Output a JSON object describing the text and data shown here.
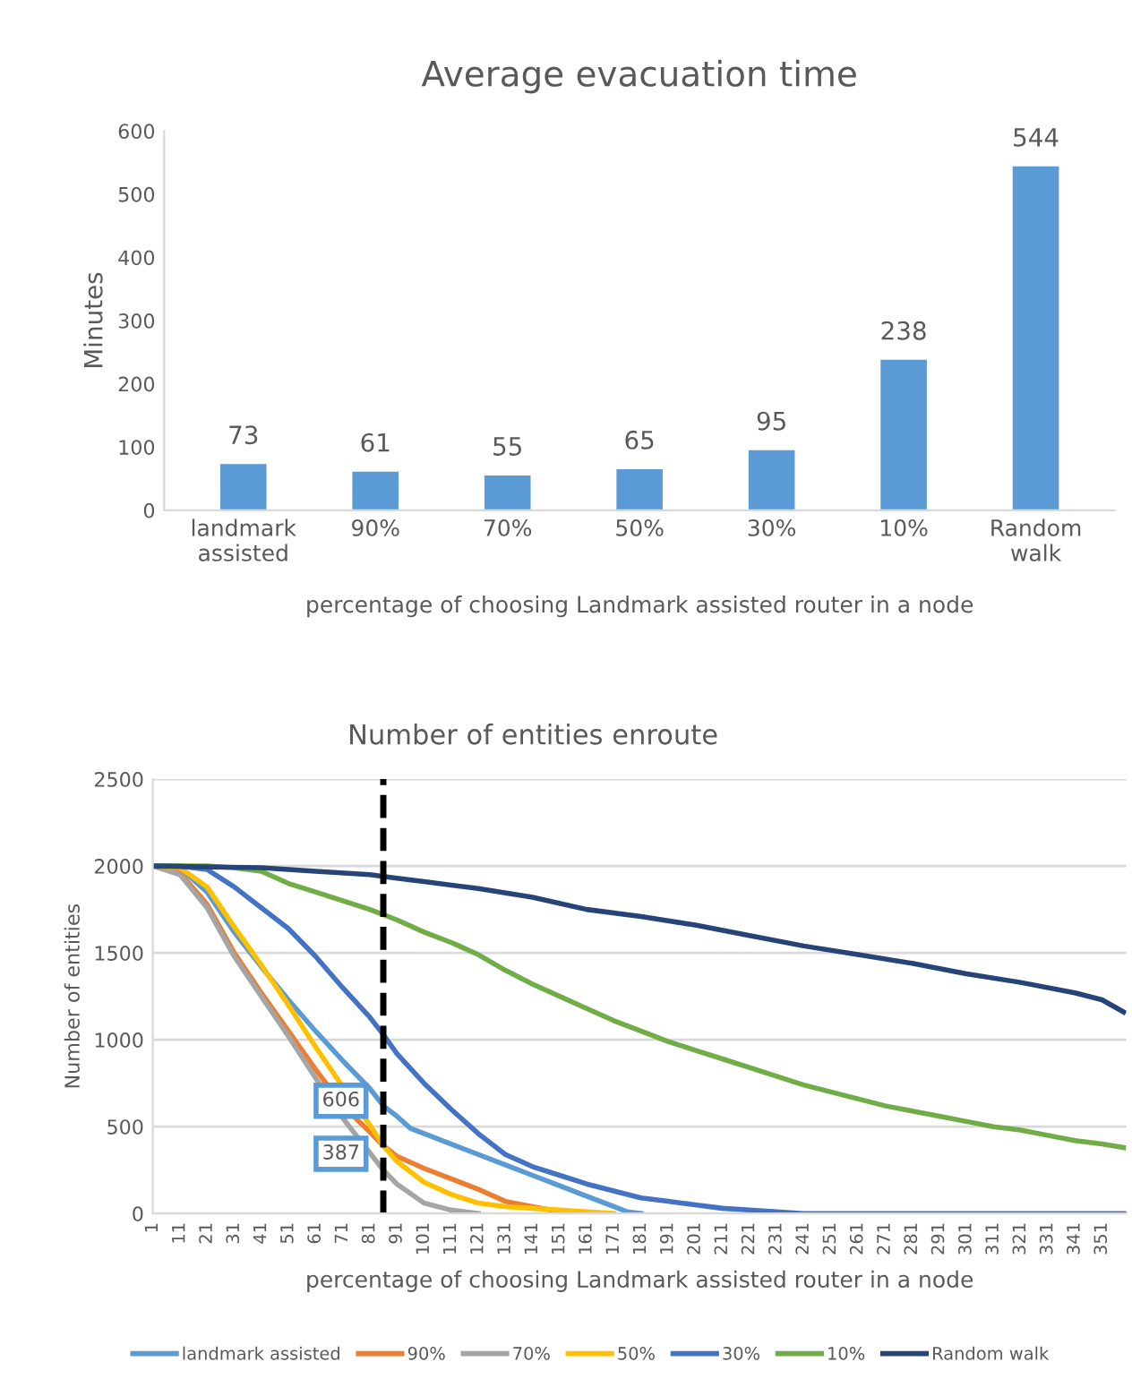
{
  "chart_data": [
    {
      "type": "bar",
      "title": "Average evacuation time",
      "xlabel": "percentage of choosing Landmark assisted router in a node",
      "ylabel": "Minutes",
      "categories": [
        "landmark\nassisted",
        "90%",
        "70%",
        "50%",
        "30%",
        "10%",
        "Random\nwalk"
      ],
      "values": [
        73,
        61,
        55,
        65,
        95,
        238,
        544
      ],
      "color": "#5b9bd5",
      "ylim": [
        0,
        600
      ],
      "yticks": [
        0,
        100,
        200,
        300,
        400,
        500,
        600
      ],
      "data_labels": true,
      "grid": false
    },
    {
      "type": "line",
      "title": "Number of entities enroute",
      "xlabel": "percentage of choosing Landmark assisted router in a node",
      "ylabel": "Number of entities",
      "xlim": [
        1,
        360
      ],
      "xticks": [
        1,
        11,
        21,
        31,
        41,
        51,
        61,
        71,
        81,
        91,
        101,
        111,
        121,
        131,
        141,
        151,
        161,
        171,
        181,
        191,
        201,
        211,
        221,
        231,
        241,
        251,
        261,
        271,
        281,
        291,
        301,
        311,
        321,
        331,
        341,
        351
      ],
      "ylim": [
        0,
        2500
      ],
      "yticks": [
        0,
        500,
        1000,
        1500,
        2000,
        2500
      ],
      "grid": "y",
      "legend": "bottom",
      "marker": "none",
      "line_style": "solid",
      "ref_lines": [
        {
          "axis": "x",
          "value": 86,
          "color": "#000000",
          "line_style": "dashed"
        }
      ],
      "annotations": [
        {
          "text": "606",
          "x": 86,
          "y": 606
        },
        {
          "text": "387",
          "x": 86,
          "y": 387
        }
      ],
      "series": [
        {
          "name": "landmark assisted",
          "color": "#5b9bd5",
          "x": [
            1,
            11,
            21,
            31,
            41,
            51,
            61,
            71,
            81,
            86,
            91,
            96,
            101,
            111,
            121,
            131,
            141,
            151,
            161,
            171,
            176,
            181
          ],
          "values": [
            2000,
            1990,
            1850,
            1620,
            1420,
            1230,
            1050,
            880,
            720,
            620,
            560,
            490,
            460,
            400,
            340,
            280,
            220,
            160,
            100,
            40,
            10,
            0
          ]
        },
        {
          "name": "90%",
          "color": "#ed7d31",
          "x": [
            1,
            11,
            21,
            31,
            41,
            51,
            61,
            71,
            81,
            86,
            91,
            101,
            111,
            121,
            131,
            141,
            151
          ],
          "values": [
            2000,
            1960,
            1780,
            1500,
            1270,
            1050,
            830,
            620,
            470,
            390,
            330,
            260,
            200,
            140,
            70,
            40,
            10
          ]
        },
        {
          "name": "70%",
          "color": "#a5a5a5",
          "x": [
            1,
            11,
            21,
            31,
            41,
            51,
            61,
            71,
            81,
            86,
            91,
            101,
            111,
            121
          ],
          "values": [
            2000,
            1950,
            1760,
            1480,
            1250,
            1020,
            780,
            550,
            350,
            250,
            170,
            60,
            20,
            0
          ]
        },
        {
          "name": "50%",
          "color": "#ffc000",
          "x": [
            1,
            11,
            21,
            31,
            41,
            51,
            61,
            71,
            81,
            86,
            91,
            101,
            111,
            121,
            131,
            141,
            151,
            161,
            171
          ],
          "values": [
            2000,
            1990,
            1880,
            1650,
            1430,
            1200,
            960,
            730,
            510,
            390,
            300,
            180,
            110,
            60,
            40,
            30,
            20,
            10,
            0
          ]
        },
        {
          "name": "30%",
          "color": "#4472c4",
          "x": [
            1,
            11,
            21,
            31,
            41,
            51,
            61,
            71,
            81,
            86,
            91,
            101,
            111,
            121,
            131,
            141,
            151,
            161,
            171,
            181,
            191,
            201,
            211,
            221,
            231,
            241,
            251,
            360
          ],
          "values": [
            2000,
            2000,
            1980,
            1880,
            1760,
            1640,
            1480,
            1300,
            1130,
            1030,
            920,
            750,
            600,
            460,
            340,
            270,
            220,
            170,
            130,
            90,
            70,
            50,
            30,
            20,
            10,
            0,
            0,
            0
          ]
        },
        {
          "name": "10%",
          "color": "#70ad47",
          "x": [
            1,
            21,
            31,
            41,
            51,
            61,
            71,
            81,
            91,
            101,
            111,
            121,
            131,
            141,
            151,
            161,
            171,
            181,
            191,
            201,
            211,
            221,
            231,
            241,
            251,
            261,
            271,
            281,
            291,
            301,
            311,
            321,
            331,
            341,
            351,
            359
          ],
          "values": [
            2000,
            2000,
            1990,
            1970,
            1900,
            1850,
            1800,
            1750,
            1690,
            1620,
            1560,
            1490,
            1400,
            1320,
            1250,
            1180,
            1110,
            1050,
            990,
            940,
            890,
            840,
            790,
            740,
            700,
            660,
            620,
            590,
            560,
            530,
            500,
            480,
            450,
            420,
            400,
            380
          ]
        },
        {
          "name": "Random walk",
          "color": "#264478",
          "x": [
            1,
            41,
            61,
            81,
            91,
            101,
            121,
            141,
            161,
            181,
            201,
            221,
            241,
            261,
            281,
            301,
            321,
            341,
            351,
            359
          ],
          "values": [
            2000,
            1990,
            1970,
            1950,
            1930,
            1910,
            1870,
            1820,
            1750,
            1710,
            1660,
            1600,
            1540,
            1490,
            1440,
            1380,
            1330,
            1270,
            1230,
            1160
          ]
        }
      ]
    }
  ]
}
